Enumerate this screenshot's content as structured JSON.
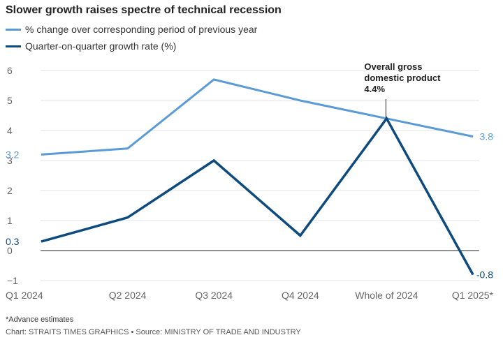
{
  "chart_data": {
    "type": "line",
    "title": "Slower growth raises spectre of technical recession",
    "categories": [
      "Q1 2024",
      "Q2 2024",
      "Q3 2024",
      "Q4 2024",
      "Whole of 2024",
      "Q1 2025*"
    ],
    "series": [
      {
        "name": "% change over corresponding period of previous year",
        "color": "#5b9bd5",
        "values": [
          3.2,
          3.4,
          5.7,
          5.0,
          4.4,
          3.8
        ]
      },
      {
        "name": "Quarter-on-quarter growth rate (%)",
        "color": "#0d4a7e",
        "values": [
          0.3,
          1.1,
          3.0,
          0.5,
          4.4,
          -0.8
        ]
      }
    ],
    "ylim": [
      -1,
      6
    ],
    "yticks": [
      -1,
      0,
      1,
      2,
      3,
      4,
      5,
      6
    ],
    "data_labels": [
      {
        "series": 0,
        "index": 0,
        "text": "3.2"
      },
      {
        "series": 0,
        "index": 5,
        "text": "3.8"
      },
      {
        "series": 1,
        "index": 0,
        "text": "0.3"
      },
      {
        "series": 1,
        "index": 5,
        "text": "-0.8"
      }
    ],
    "annotation": {
      "index": 4,
      "value": 4.4,
      "lines": [
        "Overall gross",
        "domestic product",
        "4.4%"
      ]
    },
    "xlabel": "",
    "ylabel": ""
  },
  "footnote": "*Advance estimates",
  "credit": "Chart: STRAITS TIMES GRAPHICS • Source: MINISTRY OF TRADE AND INDUSTRY"
}
